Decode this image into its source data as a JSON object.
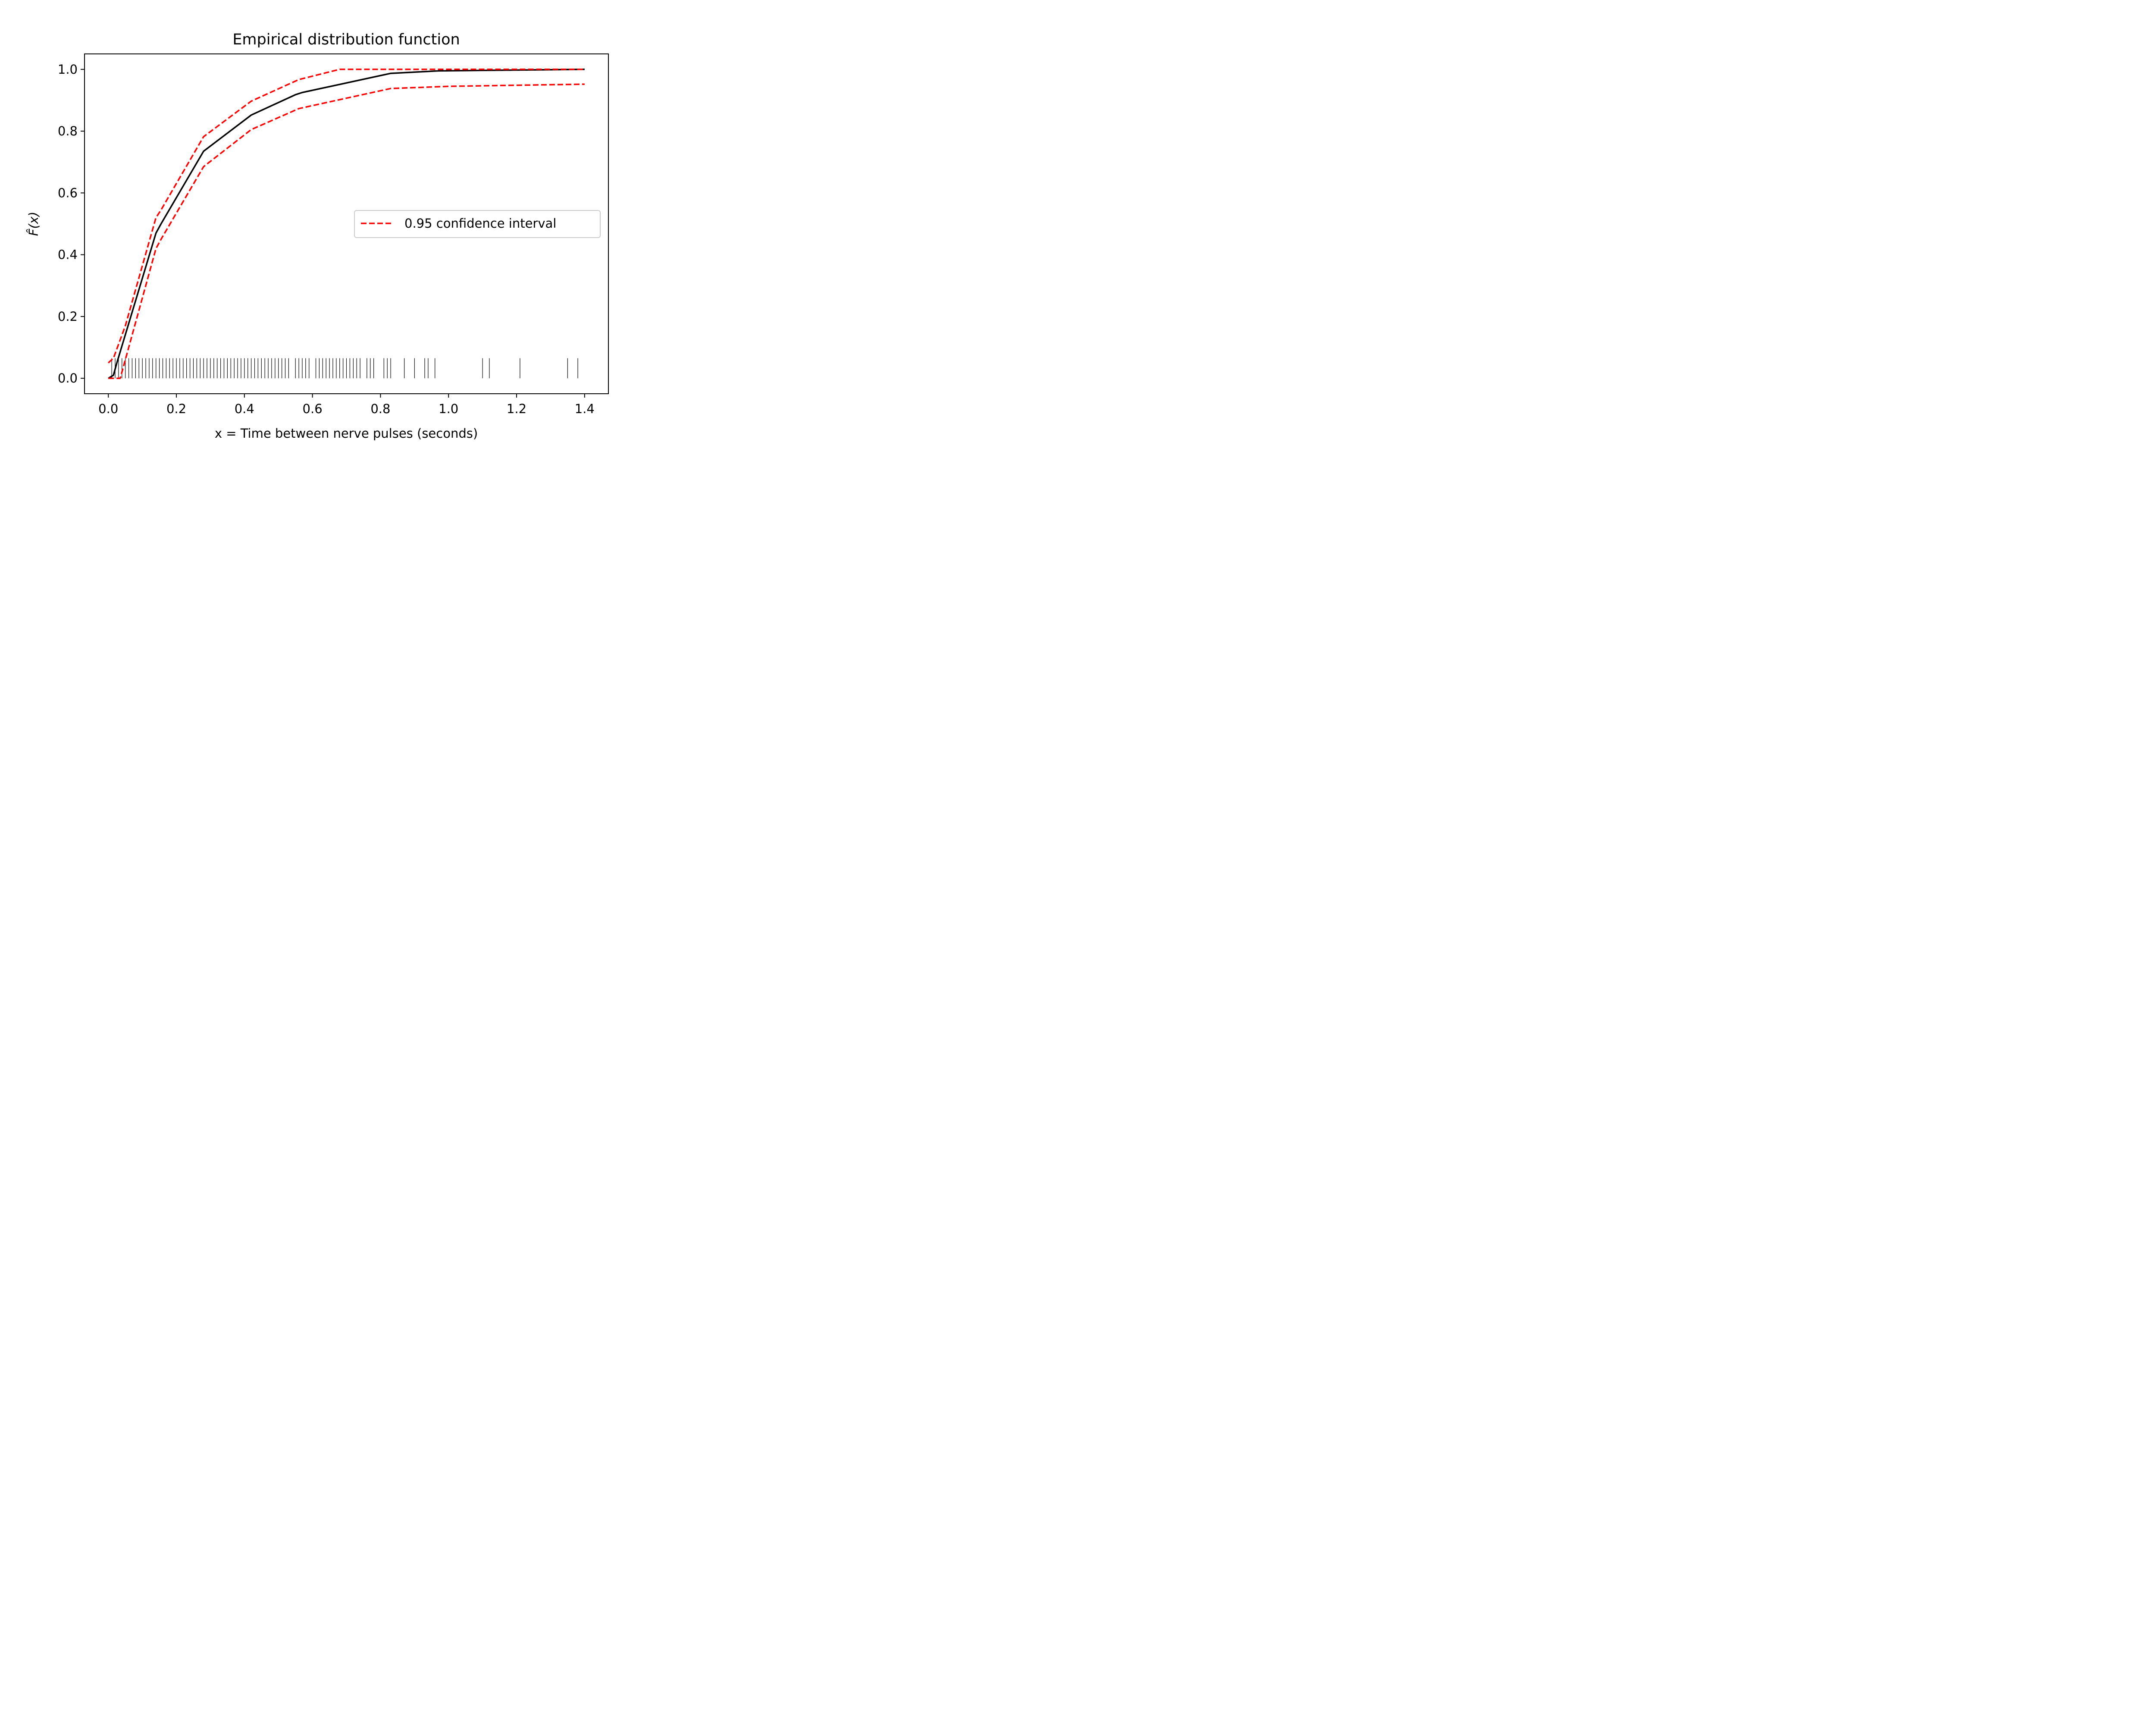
{
  "chart_data": {
    "type": "line",
    "title": "Empirical distribution function",
    "xlabel": "x = Time between nerve pulses (seconds)",
    "ylabel": "F̂(x)",
    "xlim": [
      -0.07,
      1.47
    ],
    "ylim": [
      -0.05,
      1.05
    ],
    "xticks": [
      0.0,
      0.2,
      0.4,
      0.6,
      0.8,
      1.0,
      1.2,
      1.4
    ],
    "yticks": [
      0.0,
      0.2,
      0.4,
      0.6,
      0.8,
      1.0
    ],
    "legend": {
      "position": "right",
      "label": "0.95 confidence interval"
    },
    "colors": {
      "ecdf": "#000000",
      "ci": "#ff0000",
      "rug": "#000000"
    },
    "series": [
      {
        "role": "ecdf",
        "style": "solid",
        "x": [
          0.0,
          0.015,
          0.025,
          0.14,
          0.155,
          0.28,
          0.42,
          0.55,
          0.57,
          0.83,
          0.97,
          1.4
        ],
        "y": [
          0.0,
          0.01,
          0.05,
          0.47,
          0.5,
          0.735,
          0.852,
          0.918,
          0.925,
          0.987,
          0.995,
          1.0
        ]
      },
      {
        "role": "ci-upper",
        "style": "dashed",
        "x": [
          0.0,
          0.015,
          0.05,
          0.14,
          0.155,
          0.28,
          0.42,
          0.56,
          0.68,
          1.4
        ],
        "y": [
          0.05,
          0.065,
          0.17,
          0.52,
          0.545,
          0.782,
          0.897,
          0.967,
          1.0,
          1.0
        ]
      },
      {
        "role": "ci-lower",
        "style": "dashed",
        "x": [
          0.0,
          0.02,
          0.035,
          0.14,
          0.155,
          0.28,
          0.42,
          0.56,
          0.83,
          1.0,
          1.4
        ],
        "y": [
          0.0,
          0.0,
          0.0,
          0.42,
          0.45,
          0.685,
          0.805,
          0.873,
          0.938,
          0.945,
          0.952
        ]
      }
    ],
    "rug": {
      "height": 0.065,
      "x": [
        0.01,
        0.02,
        0.03,
        0.04,
        0.05,
        0.06,
        0.07,
        0.08,
        0.09,
        0.1,
        0.11,
        0.12,
        0.13,
        0.14,
        0.15,
        0.16,
        0.17,
        0.18,
        0.19,
        0.2,
        0.21,
        0.22,
        0.23,
        0.24,
        0.25,
        0.26,
        0.27,
        0.28,
        0.29,
        0.3,
        0.31,
        0.32,
        0.33,
        0.34,
        0.35,
        0.36,
        0.37,
        0.38,
        0.39,
        0.4,
        0.41,
        0.42,
        0.43,
        0.44,
        0.45,
        0.46,
        0.47,
        0.48,
        0.49,
        0.5,
        0.51,
        0.52,
        0.53,
        0.55,
        0.56,
        0.57,
        0.58,
        0.59,
        0.61,
        0.62,
        0.63,
        0.64,
        0.65,
        0.66,
        0.67,
        0.68,
        0.69,
        0.7,
        0.71,
        0.72,
        0.73,
        0.74,
        0.76,
        0.77,
        0.78,
        0.81,
        0.82,
        0.83,
        0.87,
        0.9,
        0.93,
        0.94,
        0.96,
        1.1,
        1.12,
        1.21,
        1.35,
        1.38
      ]
    }
  }
}
